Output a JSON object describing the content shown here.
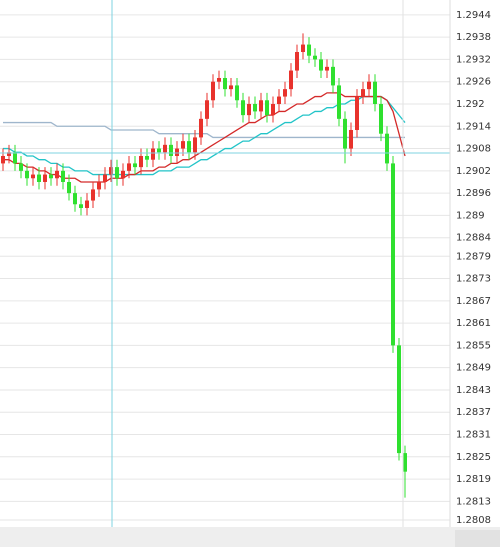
{
  "chart_data": {
    "type": "candlestick",
    "ylim": [
      1.28061,
      1.2948
    ],
    "yticks": [
      1.2944,
      1.2938,
      1.2932,
      1.2926,
      1.292,
      1.2914,
      1.2908,
      1.2902,
      1.2896,
      1.289,
      1.2884,
      1.2879,
      1.2873,
      1.2867,
      1.2861,
      1.2855,
      1.2849,
      1.2843,
      1.2837,
      1.2831,
      1.2825,
      1.2819,
      1.2813,
      1.2808
    ],
    "grid": true,
    "up_color": "#e8322c",
    "down_color": "#2fe02f",
    "open": [
      1.2904,
      1.2906,
      1.2907,
      1.2904,
      1.2902,
      1.29,
      1.2901,
      1.2899,
      1.2901,
      1.29,
      1.2902,
      1.2899,
      1.2896,
      1.2893,
      1.2892,
      1.2894,
      1.2897,
      1.2899,
      1.2901,
      1.2903,
      1.29,
      1.2902,
      1.2904,
      1.2903,
      1.2906,
      1.2905,
      1.2908,
      1.2907,
      1.2909,
      1.2906,
      1.2908,
      1.291,
      1.2907,
      1.2911,
      1.2916,
      1.2921,
      1.2926,
      1.2927,
      1.2924,
      1.2925,
      1.2921,
      1.2917,
      1.292,
      1.2918,
      1.2921,
      1.2917,
      1.292,
      1.2922,
      1.2924,
      1.2929,
      1.2934,
      1.2936,
      1.2933,
      1.2932,
      1.2929,
      1.293,
      1.2925,
      1.2916,
      1.2908,
      1.2913,
      1.2922,
      1.2924,
      1.2926,
      1.292,
      1.2912,
      1.2904,
      1.2855,
      1.2826
    ],
    "high": [
      1.2908,
      1.2909,
      1.2909,
      1.2906,
      1.2904,
      1.2903,
      1.2903,
      1.2903,
      1.2903,
      1.2904,
      1.2904,
      1.2901,
      1.2898,
      1.2895,
      1.2896,
      1.2899,
      1.2901,
      1.2903,
      1.2905,
      1.2905,
      1.2904,
      1.2906,
      1.2906,
      1.2908,
      1.2908,
      1.291,
      1.291,
      1.2911,
      1.2911,
      1.291,
      1.2912,
      1.2912,
      1.2913,
      1.2918,
      1.2923,
      1.2928,
      1.2929,
      1.2929,
      1.2927,
      1.2927,
      1.2923,
      1.2922,
      1.2922,
      1.2923,
      1.2923,
      1.2922,
      1.2924,
      1.2926,
      1.2931,
      1.2936,
      1.2939,
      1.2938,
      1.2935,
      1.2934,
      1.2932,
      1.2932,
      1.2927,
      1.2918,
      1.2915,
      1.2924,
      1.2926,
      1.2928,
      1.2928,
      1.2922,
      1.2914,
      1.2906,
      1.2857,
      1.2828
    ],
    "low": [
      1.2902,
      1.2904,
      1.2902,
      1.29,
      1.2898,
      1.2898,
      1.2897,
      1.2897,
      1.2898,
      1.2898,
      1.2897,
      1.2894,
      1.2891,
      1.289,
      1.289,
      1.2892,
      1.2895,
      1.2897,
      1.2899,
      1.2898,
      1.2898,
      1.29,
      1.2901,
      1.2901,
      1.2903,
      1.2903,
      1.2905,
      1.2905,
      1.2904,
      1.2904,
      1.2906,
      1.2905,
      1.2905,
      1.2909,
      1.2914,
      1.2919,
      1.2924,
      1.2922,
      1.2922,
      1.2919,
      1.2915,
      1.2915,
      1.2916,
      1.2916,
      1.2915,
      1.2915,
      1.2918,
      1.292,
      1.2922,
      1.2927,
      1.2932,
      1.2931,
      1.293,
      1.2927,
      1.2927,
      1.2923,
      1.2914,
      1.2904,
      1.2906,
      1.2911,
      1.292,
      1.2922,
      1.2918,
      1.291,
      1.2902,
      1.2853,
      1.2824,
      1.2814
    ],
    "close": [
      1.2906,
      1.2907,
      1.2904,
      1.2902,
      1.29,
      1.2901,
      1.2899,
      1.2901,
      1.29,
      1.2902,
      1.2899,
      1.2896,
      1.2893,
      1.2892,
      1.2894,
      1.2897,
      1.2899,
      1.2901,
      1.2903,
      1.29,
      1.2902,
      1.2904,
      1.2903,
      1.2906,
      1.2905,
      1.2908,
      1.2907,
      1.2909,
      1.2906,
      1.2908,
      1.291,
      1.2907,
      1.2911,
      1.2916,
      1.2921,
      1.2926,
      1.2927,
      1.2924,
      1.2925,
      1.2921,
      1.2917,
      1.292,
      1.2918,
      1.2921,
      1.2917,
      1.292,
      1.2922,
      1.2924,
      1.2929,
      1.2934,
      1.2936,
      1.2933,
      1.2932,
      1.2929,
      1.293,
      1.2925,
      1.2916,
      1.2908,
      1.2913,
      1.2922,
      1.2924,
      1.2926,
      1.292,
      1.2912,
      1.2904,
      1.2855,
      1.2826,
      1.2821
    ],
    "series": [
      {
        "color": "#9fb6cc",
        "values": [
          1.2915,
          1.2915,
          1.2915,
          1.2915,
          1.2915,
          1.2915,
          1.2915,
          1.2915,
          1.2915,
          1.2914,
          1.2914,
          1.2914,
          1.2914,
          1.2914,
          1.2914,
          1.2914,
          1.2914,
          1.2914,
          1.2913,
          1.2913,
          1.2913,
          1.2913,
          1.2913,
          1.2913,
          1.2913,
          1.2913,
          1.2912,
          1.2912,
          1.2912,
          1.2912,
          1.2912,
          1.2912,
          1.2912,
          1.2912,
          1.2912,
          1.2911,
          1.2911,
          1.2911,
          1.2911,
          1.2911,
          1.2911,
          1.2911,
          1.2911,
          1.2911,
          1.2911,
          1.2911,
          1.2911,
          1.2911,
          1.2911,
          1.2911,
          1.2911,
          1.2911,
          1.2911,
          1.2911,
          1.2911,
          1.2911,
          1.2911,
          1.2911,
          1.2911,
          1.2911,
          1.2911,
          1.2911,
          1.2911,
          1.2911,
          1.2911,
          1.2911,
          1.2911,
          1.2911
        ]
      },
      {
        "color": "#22c4c8",
        "values": [
          1.2908,
          1.2908,
          1.2907,
          1.2907,
          1.2906,
          1.2906,
          1.2905,
          1.2905,
          1.2904,
          1.2904,
          1.2903,
          1.2903,
          1.2902,
          1.2902,
          1.2902,
          1.2901,
          1.2901,
          1.2901,
          1.2901,
          1.2901,
          1.2901,
          1.2901,
          1.2901,
          1.2901,
          1.2901,
          1.2901,
          1.2902,
          1.2902,
          1.2902,
          1.2903,
          1.2903,
          1.2903,
          1.2904,
          1.2905,
          1.2905,
          1.2906,
          1.2907,
          1.2908,
          1.2908,
          1.2909,
          1.291,
          1.291,
          1.2911,
          1.2912,
          1.2912,
          1.2913,
          1.2914,
          1.2915,
          1.2915,
          1.2916,
          1.2917,
          1.2917,
          1.2918,
          1.2918,
          1.2919,
          1.2919,
          1.292,
          1.292,
          1.2921,
          1.2921,
          1.2922,
          1.2922,
          1.2922,
          1.2922,
          1.2921,
          1.2919,
          1.2917,
          1.2915
        ]
      },
      {
        "color": "#d42a2a",
        "values": [
          1.2905,
          1.2905,
          1.2904,
          1.2904,
          1.2903,
          1.2903,
          1.2902,
          1.2902,
          1.2901,
          1.2901,
          1.29,
          1.29,
          1.29,
          1.2899,
          1.2899,
          1.2899,
          1.2899,
          1.2899,
          1.29,
          1.29,
          1.29,
          1.2901,
          1.2901,
          1.2902,
          1.2902,
          1.2902,
          1.2903,
          1.2903,
          1.2904,
          1.2904,
          1.2905,
          1.2905,
          1.2906,
          1.2907,
          1.2908,
          1.2909,
          1.291,
          1.2911,
          1.2912,
          1.2913,
          1.2914,
          1.2915,
          1.2915,
          1.2916,
          1.2917,
          1.2917,
          1.2918,
          1.2918,
          1.2919,
          1.292,
          1.292,
          1.2921,
          1.2922,
          1.2922,
          1.2923,
          1.2923,
          1.2923,
          1.2922,
          1.2922,
          1.2922,
          1.2922,
          1.2922,
          1.2922,
          1.2922,
          1.2921,
          1.2918,
          1.2912,
          1.2906
        ]
      }
    ]
  }
}
